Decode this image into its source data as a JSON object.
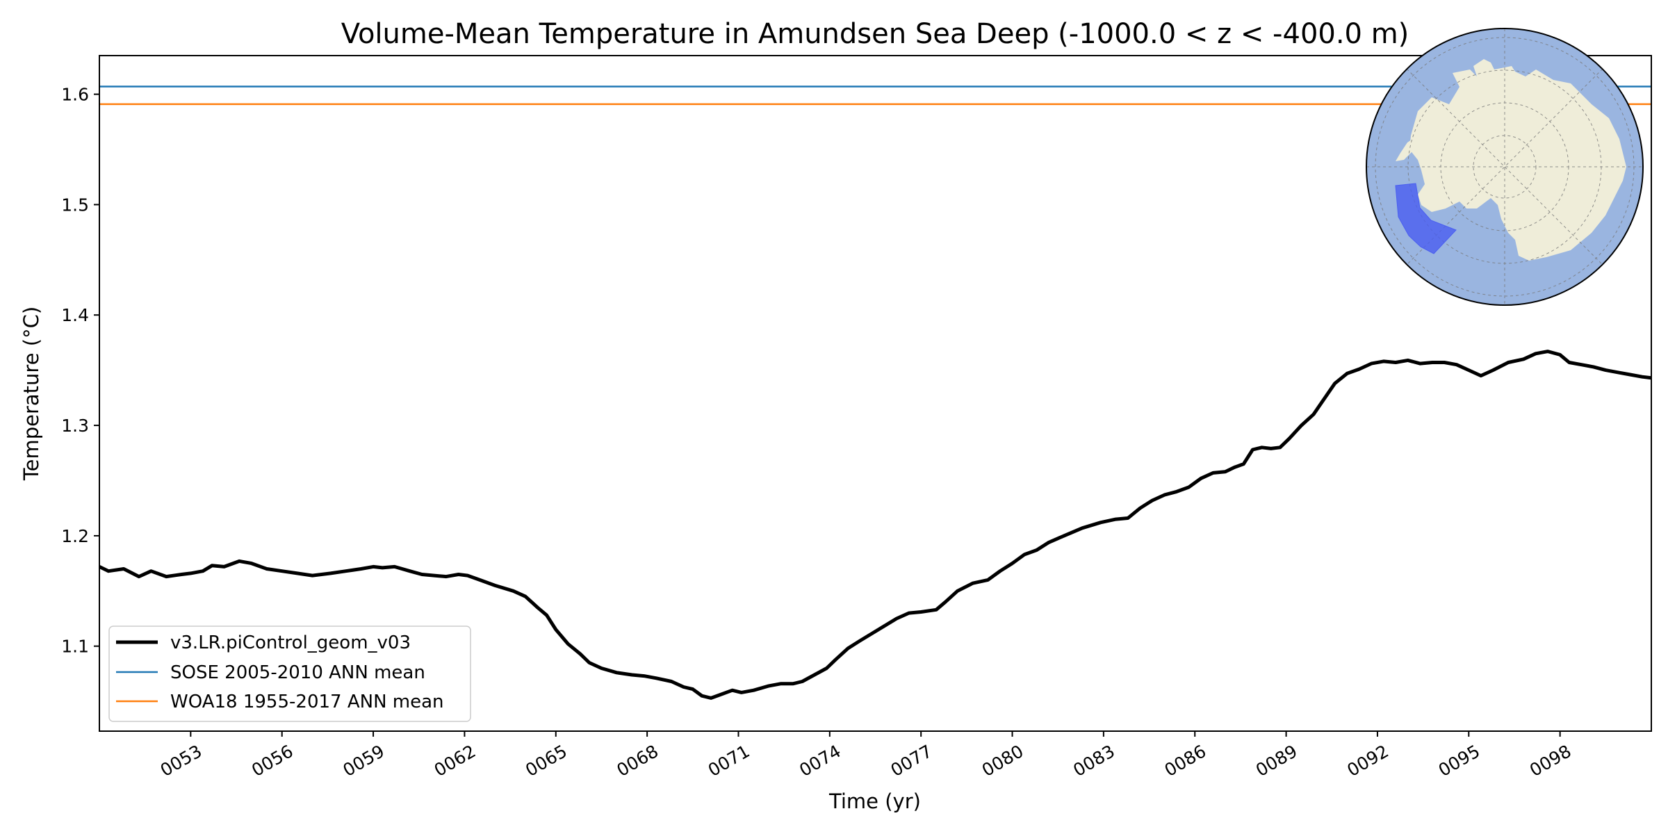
{
  "chart_data": {
    "type": "line",
    "title": "Volume-Mean Temperature in Amundsen Sea Deep (-1000.0 < z < -400.0 m)",
    "xlabel": "Time (yr)",
    "ylabel": "Temperature (°C)",
    "xlim": [
      50.0,
      101.0
    ],
    "ylim": [
      1.023,
      1.635
    ],
    "x_ticks": [
      53,
      56,
      59,
      62,
      65,
      68,
      71,
      74,
      77,
      80,
      83,
      86,
      89,
      92,
      95,
      98
    ],
    "x_tick_labels": [
      "0053",
      "0056",
      "0059",
      "0062",
      "0065",
      "0068",
      "0071",
      "0074",
      "0077",
      "0080",
      "0083",
      "0086",
      "0089",
      "0092",
      "0095",
      "0098"
    ],
    "y_ticks": [
      1.1,
      1.2,
      1.3,
      1.4,
      1.5,
      1.6
    ],
    "y_tick_labels": [
      "1.1",
      "1.2",
      "1.3",
      "1.4",
      "1.5",
      "1.6"
    ],
    "grid": false,
    "legend_position": "lower-left",
    "series": [
      {
        "name": "v3.LR.piControl_geom_v03",
        "color": "#000000",
        "style": "thick-line",
        "x": [
          50.0,
          50.3,
          50.8,
          51.3,
          51.7,
          52.2,
          52.7,
          53.0,
          53.4,
          53.7,
          54.1,
          54.6,
          55.0,
          55.5,
          56.0,
          56.5,
          57.0,
          57.6,
          58.1,
          58.6,
          59.0,
          59.3,
          59.7,
          60.2,
          60.6,
          61.0,
          61.4,
          61.8,
          62.1,
          62.5,
          63.0,
          63.6,
          64.0,
          64.4,
          64.7,
          65.0,
          65.4,
          65.8,
          66.1,
          66.5,
          67.0,
          67.5,
          67.9,
          68.3,
          68.8,
          69.2,
          69.5,
          69.8,
          70.1,
          70.4,
          70.8,
          71.1,
          71.5,
          72.0,
          72.4,
          72.8,
          73.1,
          73.5,
          73.9,
          74.2,
          74.6,
          75.0,
          75.6,
          76.2,
          76.6,
          77.0,
          77.5,
          77.8,
          78.2,
          78.7,
          79.2,
          79.6,
          80.0,
          80.4,
          80.8,
          81.2,
          81.7,
          82.3,
          82.9,
          83.4,
          83.8,
          84.2,
          84.6,
          85.0,
          85.4,
          85.8,
          86.2,
          86.6,
          87.0,
          87.3,
          87.6,
          87.9,
          88.2,
          88.5,
          88.8,
          89.1,
          89.5,
          89.9,
          90.2,
          90.6,
          91.0,
          91.4,
          91.8,
          92.2,
          92.6,
          93.0,
          93.4,
          93.8,
          94.2,
          94.6,
          95.0,
          95.4,
          95.8,
          96.3,
          96.8,
          97.2,
          97.6,
          98.0,
          98.3,
          98.7,
          99.1,
          99.5,
          99.9,
          100.3,
          100.7,
          101.0
        ],
        "y": [
          1.172,
          1.168,
          1.17,
          1.163,
          1.168,
          1.163,
          1.165,
          1.166,
          1.168,
          1.173,
          1.172,
          1.177,
          1.175,
          1.17,
          1.168,
          1.166,
          1.164,
          1.166,
          1.168,
          1.17,
          1.172,
          1.171,
          1.172,
          1.168,
          1.165,
          1.164,
          1.163,
          1.165,
          1.164,
          1.16,
          1.155,
          1.15,
          1.145,
          1.135,
          1.128,
          1.115,
          1.102,
          1.093,
          1.085,
          1.08,
          1.076,
          1.074,
          1.073,
          1.071,
          1.068,
          1.063,
          1.061,
          1.055,
          1.053,
          1.056,
          1.06,
          1.058,
          1.06,
          1.064,
          1.066,
          1.066,
          1.068,
          1.074,
          1.08,
          1.088,
          1.098,
          1.105,
          1.115,
          1.125,
          1.13,
          1.131,
          1.133,
          1.14,
          1.15,
          1.157,
          1.16,
          1.168,
          1.175,
          1.183,
          1.187,
          1.194,
          1.2,
          1.207,
          1.212,
          1.215,
          1.216,
          1.225,
          1.232,
          1.237,
          1.24,
          1.244,
          1.252,
          1.257,
          1.258,
          1.262,
          1.265,
          1.278,
          1.28,
          1.279,
          1.28,
          1.288,
          1.3,
          1.31,
          1.322,
          1.338,
          1.347,
          1.351,
          1.356,
          1.358,
          1.357,
          1.359,
          1.356,
          1.357,
          1.357,
          1.355,
          1.35,
          1.345,
          1.35,
          1.357,
          1.36,
          1.365,
          1.367,
          1.364,
          1.357,
          1.355,
          1.353,
          1.35,
          1.348,
          1.346,
          1.344,
          1.343
        ]
      },
      {
        "name": "SOSE 2005-2010 ANN mean",
        "color": "#1f77b4",
        "style": "horizontal-line",
        "y": 1.607
      },
      {
        "name": "WOA18 1955-2017 ANN mean",
        "color": "#ff7f0e",
        "style": "horizontal-line",
        "y": 1.591
      }
    ],
    "inset": {
      "type": "map",
      "projection": "south-polar-stereographic",
      "ocean_color": "#9ab5e0",
      "land_color": "#efedd9",
      "highlight_color": "#4a5ef0",
      "highlight_region": "Amundsen Sea"
    }
  }
}
